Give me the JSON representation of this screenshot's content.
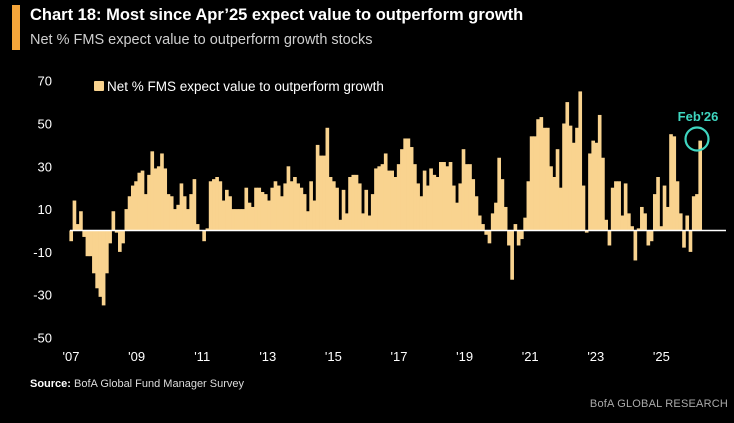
{
  "header": {
    "title": "Chart 18: Most since Apr’25 expect value to outperform growth",
    "subtitle": "Net % FMS expect value to outperform growth stocks"
  },
  "footer": {
    "source_label": "Source:",
    "source_text": "BofA Global Fund Manager Survey",
    "brand": "BofA GLOBAL RESEARCH"
  },
  "colors": {
    "background": "#000000",
    "bar": "#f9d38f",
    "accent": "#f5a53a",
    "annotation": "#3fd6c0",
    "zero_line": "#ffffff"
  },
  "chart_data": {
    "type": "bar",
    "title": "Chart 18: Most since Apr’25 expect value to outperform growth",
    "subtitle": "Net % FMS expect value to outperform growth stocks",
    "xlabel": "",
    "ylabel": "",
    "ylim": [
      -50,
      70
    ],
    "yticks": [
      70,
      50,
      30,
      10,
      -10,
      -30,
      -50
    ],
    "xtick_labels": [
      "'07",
      "'09",
      "'11",
      "'13",
      "'15",
      "'17",
      "'19",
      "'21",
      "'23",
      "'25"
    ],
    "grid": false,
    "legend": {
      "position": "top-left",
      "entries": [
        "Net % FMS expect value to outperform growth"
      ]
    },
    "annotation": {
      "label": "Feb'26",
      "value": 42
    },
    "series": [
      {
        "name": "Net % FMS expect value to outperform growth",
        "values": [
          -5,
          14,
          3,
          9,
          -3,
          -12,
          -12,
          -20,
          -27,
          -31,
          -35,
          -20,
          -6,
          9,
          -1,
          -10,
          -6,
          10,
          16,
          21,
          23,
          27,
          28,
          17,
          26,
          37,
          29,
          30,
          36,
          29,
          17,
          16,
          10,
          12,
          22,
          16,
          10,
          17,
          24,
          3,
          0,
          -5,
          1,
          23,
          24,
          25,
          23,
          14,
          19,
          16,
          10,
          10,
          10,
          10,
          20,
          13,
          11,
          20,
          20,
          18,
          17,
          14,
          20,
          23,
          21,
          16,
          22,
          30,
          23,
          25,
          22,
          20,
          17,
          9,
          23,
          14,
          40,
          35,
          35,
          48,
          25,
          23,
          20,
          5,
          19,
          8,
          25,
          26,
          26,
          22,
          8,
          19,
          7,
          17,
          29,
          30,
          31,
          36,
          28,
          28,
          25,
          31,
          38,
          43,
          43,
          39,
          31,
          22,
          16,
          28,
          21,
          29,
          26,
          25,
          32,
          32,
          30,
          32,
          21,
          13,
          22,
          38,
          31,
          31,
          24,
          16,
          7,
          3,
          -2,
          -6,
          8,
          13,
          34,
          24,
          11,
          -7,
          -23,
          3,
          -7,
          -4,
          6,
          23,
          44,
          44,
          52,
          53,
          48,
          48,
          30,
          25,
          38,
          20,
          50,
          60,
          49,
          41,
          48,
          65,
          21,
          -1,
          36,
          42,
          41,
          54,
          34,
          5,
          -7,
          20,
          23,
          23,
          7,
          22,
          8,
          2,
          -14,
          1,
          11,
          8,
          -7,
          -5,
          17,
          25,
          2,
          21,
          11,
          45,
          44,
          23,
          8,
          -8,
          7,
          -10,
          16,
          17,
          42
        ]
      }
    ]
  }
}
